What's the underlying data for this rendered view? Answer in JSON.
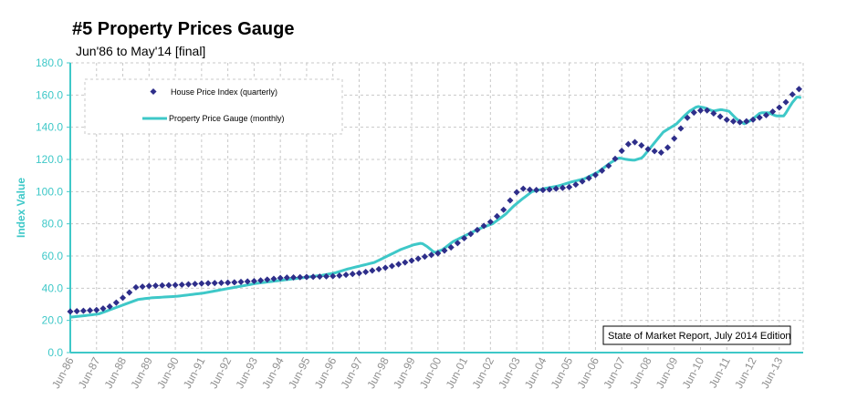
{
  "chart_data": {
    "type": "line",
    "title": "#5 Property Prices Gauge",
    "subtitle": "Jun'86 to May'14 [final]",
    "ylabel": "Index Value",
    "ylim": [
      0,
      180
    ],
    "yticks": [
      "0.0",
      "20.0",
      "40.0",
      "60.0",
      "80.0",
      "100.0",
      "120.0",
      "140.0",
      "160.0",
      "180.0"
    ],
    "xlim": [
      1986.42,
      2014.33
    ],
    "xtick_labels": [
      "Jun-86",
      "Jun-87",
      "Jun-88",
      "Jun-89",
      "Jun-90",
      "Jun-91",
      "Jun-92",
      "Jun-93",
      "Jun-94",
      "Jun-95",
      "Jun-96",
      "Jun-97",
      "Jun-98",
      "Jun-99",
      "Jun-00",
      "Jun-01",
      "Jun-02",
      "Jun-03",
      "Jun-04",
      "Jun-05",
      "Jun-06",
      "Jun-07",
      "Jun-08",
      "Jun-09",
      "Jun-10",
      "Jun-11",
      "Jun-12",
      "Jun-13"
    ],
    "grid": true,
    "legend_position": "top-left",
    "annotation": "State of Market Report, July 2014 Edition",
    "series": [
      {
        "name": "House Price Index (quarterly)",
        "type": "scatter",
        "color": "#2e2e8a",
        "anchors": [
          [
            1986.42,
            25.5
          ],
          [
            1987.5,
            26.5
          ],
          [
            1988.0,
            29
          ],
          [
            1988.5,
            35
          ],
          [
            1988.9,
            40.5
          ],
          [
            1989.5,
            41.5
          ],
          [
            1990.5,
            42
          ],
          [
            1991.5,
            43
          ],
          [
            1992.5,
            43.5
          ],
          [
            1993.5,
            44.5
          ],
          [
            1994.5,
            46.5
          ],
          [
            1995.5,
            47
          ],
          [
            1996.5,
            47.5
          ],
          [
            1997.5,
            49.5
          ],
          [
            1998.5,
            53
          ],
          [
            1999.5,
            57.5
          ],
          [
            2000.0,
            60
          ],
          [
            2000.5,
            62
          ],
          [
            2001.0,
            66
          ],
          [
            2001.5,
            72
          ],
          [
            2002.0,
            77
          ],
          [
            2002.5,
            82
          ],
          [
            2003.0,
            90
          ],
          [
            2003.3,
            98
          ],
          [
            2003.6,
            102
          ],
          [
            2004.0,
            101
          ],
          [
            2004.5,
            101
          ],
          [
            2005.0,
            102
          ],
          [
            2005.5,
            103
          ],
          [
            2006.0,
            107
          ],
          [
            2006.5,
            111
          ],
          [
            2007.0,
            117
          ],
          [
            2007.4,
            125
          ],
          [
            2007.7,
            130
          ],
          [
            2008.0,
            131
          ],
          [
            2008.3,
            127
          ],
          [
            2008.7,
            125
          ],
          [
            2009.0,
            124
          ],
          [
            2009.3,
            130
          ],
          [
            2009.7,
            140
          ],
          [
            2010.0,
            148
          ],
          [
            2010.3,
            150
          ],
          [
            2010.6,
            151
          ],
          [
            2011.0,
            148
          ],
          [
            2011.5,
            144
          ],
          [
            2012.0,
            143
          ],
          [
            2012.5,
            145
          ],
          [
            2013.0,
            148
          ],
          [
            2013.4,
            152
          ],
          [
            2013.7,
            156
          ],
          [
            2014.0,
            162
          ],
          [
            2014.25,
            164.5
          ]
        ]
      },
      {
        "name": "Property Price Gauge (monthly)",
        "type": "line",
        "color": "#3ec8c8",
        "anchors": [
          [
            1986.42,
            22
          ],
          [
            1987.0,
            23
          ],
          [
            1987.5,
            24
          ],
          [
            1988.0,
            27
          ],
          [
            1988.5,
            30
          ],
          [
            1989.0,
            33
          ],
          [
            1989.5,
            34
          ],
          [
            1990.0,
            34.5
          ],
          [
            1990.5,
            35
          ],
          [
            1991.0,
            36
          ],
          [
            1991.5,
            37
          ],
          [
            1992.0,
            38.5
          ],
          [
            1992.5,
            40
          ],
          [
            1993.0,
            41.5
          ],
          [
            1993.5,
            43
          ],
          [
            1994.0,
            44
          ],
          [
            1994.5,
            45
          ],
          [
            1995.0,
            46
          ],
          [
            1995.5,
            47
          ],
          [
            1996.0,
            48
          ],
          [
            1996.5,
            49.5
          ],
          [
            1997.0,
            52
          ],
          [
            1997.5,
            54
          ],
          [
            1998.0,
            56
          ],
          [
            1998.5,
            60
          ],
          [
            1999.0,
            64
          ],
          [
            1999.5,
            67
          ],
          [
            1999.8,
            68
          ],
          [
            2000.0,
            66
          ],
          [
            2000.3,
            62
          ],
          [
            2000.6,
            64
          ],
          [
            2001.0,
            69
          ],
          [
            2001.5,
            73
          ],
          [
            2002.0,
            77
          ],
          [
            2002.5,
            80
          ],
          [
            2003.0,
            86
          ],
          [
            2003.3,
            91
          ],
          [
            2003.6,
            95
          ],
          [
            2004.0,
            100
          ],
          [
            2004.5,
            102
          ],
          [
            2005.0,
            103.5
          ],
          [
            2005.5,
            106
          ],
          [
            2006.0,
            108
          ],
          [
            2006.5,
            112
          ],
          [
            2007.0,
            118
          ],
          [
            2007.3,
            121
          ],
          [
            2007.6,
            120
          ],
          [
            2007.9,
            119.5
          ],
          [
            2008.2,
            121
          ],
          [
            2008.5,
            127
          ],
          [
            2008.8,
            133
          ],
          [
            2009.0,
            137
          ],
          [
            2009.5,
            142
          ],
          [
            2009.8,
            147
          ],
          [
            2010.0,
            150
          ],
          [
            2010.3,
            153
          ],
          [
            2010.6,
            152
          ],
          [
            2010.9,
            150
          ],
          [
            2011.2,
            151
          ],
          [
            2011.5,
            150
          ],
          [
            2011.8,
            145
          ],
          [
            2012.1,
            142
          ],
          [
            2012.4,
            145
          ],
          [
            2012.7,
            149
          ],
          [
            2013.0,
            149
          ],
          [
            2013.3,
            147
          ],
          [
            2013.6,
            147
          ],
          [
            2013.9,
            155
          ],
          [
            2014.1,
            159
          ],
          [
            2014.33,
            158
          ]
        ]
      }
    ]
  }
}
